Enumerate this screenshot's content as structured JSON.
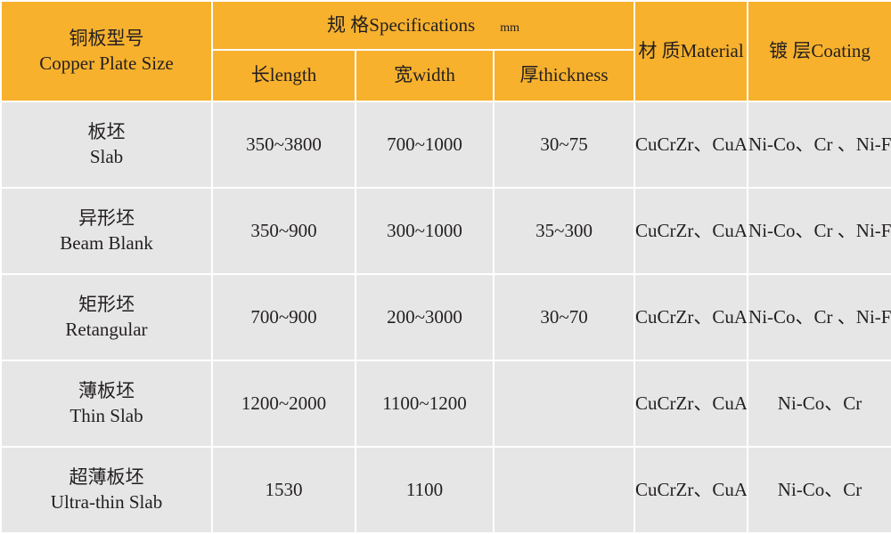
{
  "table": {
    "header": {
      "size_zh": "铜板型号",
      "size_en": "Copper Plate Size",
      "specifications": "规 格Specifications",
      "unit": "mm",
      "length": "长length",
      "width": "宽width",
      "thickness": "厚thickness",
      "material": "材 质Material",
      "coating": "镀 层Coating"
    },
    "rows": [
      {
        "name_zh": "板坯",
        "name_en": "Slab",
        "length": "350~3800",
        "width": "700~1000",
        "thickness": "30~75",
        "material": "CuCrZr、CuAg",
        "coating": "Ni-Co、Cr 、Ni-Fe"
      },
      {
        "name_zh": "异形坯",
        "name_en": "Beam  Blank",
        "length": "350~900",
        "width": "300~1000",
        "thickness": "35~300",
        "material": "CuCrZr、CuAg",
        "coating": "Ni-Co、Cr 、Ni-Fe"
      },
      {
        "name_zh": "矩形坯",
        "name_en": "Retangular",
        "length": "700~900",
        "width": "200~3000",
        "thickness": "30~70",
        "material": "CuCrZr、CuAg",
        "coating": "Ni-Co、Cr 、Ni-Fe"
      },
      {
        "name_zh": "薄板坯",
        "name_en": "Thin Slab",
        "length": "1200~2000",
        "width": "1100~1200",
        "material": "CuCrZr、CuAg",
        "coating": "Ni-Co、Cr"
      },
      {
        "name_zh": "超薄板坯",
        "name_en": "Ultra-thin Slab",
        "length": "1530",
        "width": "1100",
        "material": "CuCrZr、CuAg",
        "coating": "Ni-Co、Cr"
      }
    ]
  }
}
